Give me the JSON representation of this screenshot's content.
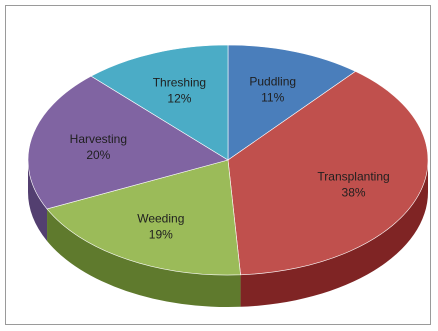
{
  "chart_data": {
    "type": "pie",
    "style": "3d-tilted",
    "legend": "none",
    "series": [
      {
        "categories": [
          "Puddling",
          "Transplanting",
          "Weeding",
          "Harvesting",
          "Threshing"
        ],
        "values": [
          11,
          38,
          19,
          20,
          12
        ],
        "labels": [
          "11%",
          "38%",
          "19%",
          "20%",
          "12%"
        ],
        "colors": [
          "#4a7ebb",
          "#c0504d",
          "#9bbb59",
          "#8064a2",
          "#4bacc6"
        ],
        "side_colors": [
          "#2f5688",
          "#7f2424",
          "#5f7a2d",
          "#533f70",
          "#2e7d93"
        ]
      }
    ]
  }
}
